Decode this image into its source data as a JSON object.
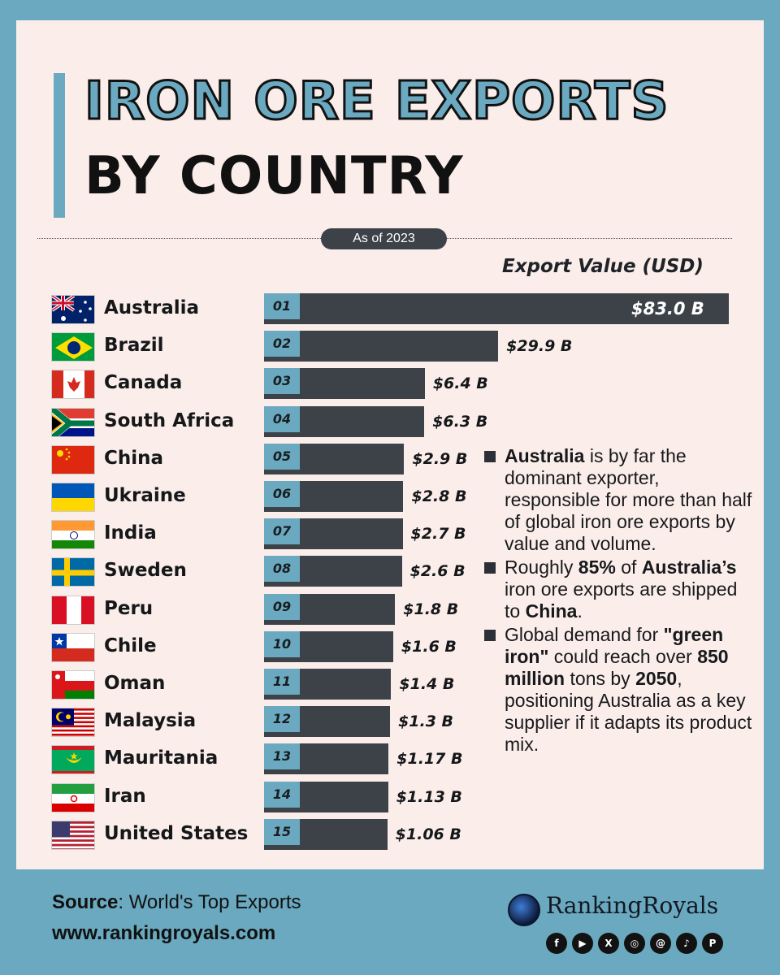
{
  "title": {
    "line1": "IRON ORE EXPORTS",
    "line2": "BY COUNTRY"
  },
  "date_label": "As of 2023",
  "value_heading": "Export Value (USD)",
  "colors": {
    "accent": "#6aa9bf",
    "bar": "#3d4249",
    "card": "#fbeeea"
  },
  "chart_data": {
    "type": "bar",
    "orientation": "horizontal",
    "title": "IRON ORE EXPORTS BY COUNTRY",
    "subtitle": "As of 2023",
    "value_axis_label": "Export Value (USD)",
    "categories": [
      "Australia",
      "Brazil",
      "Canada",
      "South Africa",
      "China",
      "Ukraine",
      "India",
      "Sweden",
      "Peru",
      "Chile",
      "Oman",
      "Malaysia",
      "Mauritania",
      "Iran",
      "United States"
    ],
    "ranks": [
      "01",
      "02",
      "03",
      "04",
      "05",
      "06",
      "07",
      "08",
      "09",
      "10",
      "11",
      "12",
      "13",
      "14",
      "15"
    ],
    "values": [
      83.0,
      29.9,
      6.4,
      6.3,
      2.9,
      2.8,
      2.7,
      2.6,
      1.8,
      1.6,
      1.4,
      1.3,
      1.17,
      1.13,
      1.06
    ],
    "value_labels": [
      "$83.0 B",
      "$29.9 B",
      "$6.4 B",
      "$6.3 B",
      "$2.9 B",
      "$2.8 B",
      "$2.7 B",
      "$2.6 B",
      "$1.8 B",
      "$1.6 B",
      "$1.4 B",
      "$1.3 B",
      "$1.17 B",
      "$1.13 B",
      "$1.06 B"
    ],
    "flag_icons": [
      "flag-australia-icon",
      "flag-brazil-icon",
      "flag-canada-icon",
      "flag-south-africa-icon",
      "flag-china-icon",
      "flag-ukraine-icon",
      "flag-india-icon",
      "flag-sweden-icon",
      "flag-peru-icon",
      "flag-chile-icon",
      "flag-oman-icon",
      "flag-malaysia-icon",
      "flag-mauritania-icon",
      "flag-iran-icon",
      "flag-united-states-icon"
    ],
    "unit": "USD billions",
    "xlim": [
      0,
      83.0
    ],
    "grid": false
  },
  "notes": [
    {
      "parts": [
        {
          "b": true,
          "t": "Australia"
        },
        {
          "b": false,
          "t": " is by far the dominant exporter, responsible for more than half of global iron ore exports by value and volume."
        }
      ]
    },
    {
      "parts": [
        {
          "b": false,
          "t": "Roughly "
        },
        {
          "b": true,
          "t": "85%"
        },
        {
          "b": false,
          "t": " of "
        },
        {
          "b": true,
          "t": "Australia’s"
        },
        {
          "b": false,
          "t": " iron ore exports are shipped to "
        },
        {
          "b": true,
          "t": "China"
        },
        {
          "b": false,
          "t": "."
        }
      ]
    },
    {
      "parts": [
        {
          "b": false,
          "t": "Global demand for "
        },
        {
          "b": true,
          "t": "\"green iron\""
        },
        {
          "b": false,
          "t": " could reach over "
        },
        {
          "b": true,
          "t": "850 million"
        },
        {
          "b": false,
          "t": " tons by "
        },
        {
          "b": true,
          "t": "2050"
        },
        {
          "b": false,
          "t": ", positioning Australia as a key supplier if it adapts its product mix."
        }
      ]
    }
  ],
  "footer": {
    "source_label": "Source",
    "source_text": ": World's Top Exports",
    "url": "www.rankingroyals.com",
    "brand": "RankingRoyals",
    "socials": [
      {
        "icon": "facebook-icon",
        "glyph": "f"
      },
      {
        "icon": "youtube-icon",
        "glyph": "▶"
      },
      {
        "icon": "x-icon",
        "glyph": "X"
      },
      {
        "icon": "instagram-icon",
        "glyph": "◎"
      },
      {
        "icon": "threads-icon",
        "glyph": "@"
      },
      {
        "icon": "tiktok-icon",
        "glyph": "♪"
      },
      {
        "icon": "pinterest-icon",
        "glyph": "P"
      }
    ]
  }
}
